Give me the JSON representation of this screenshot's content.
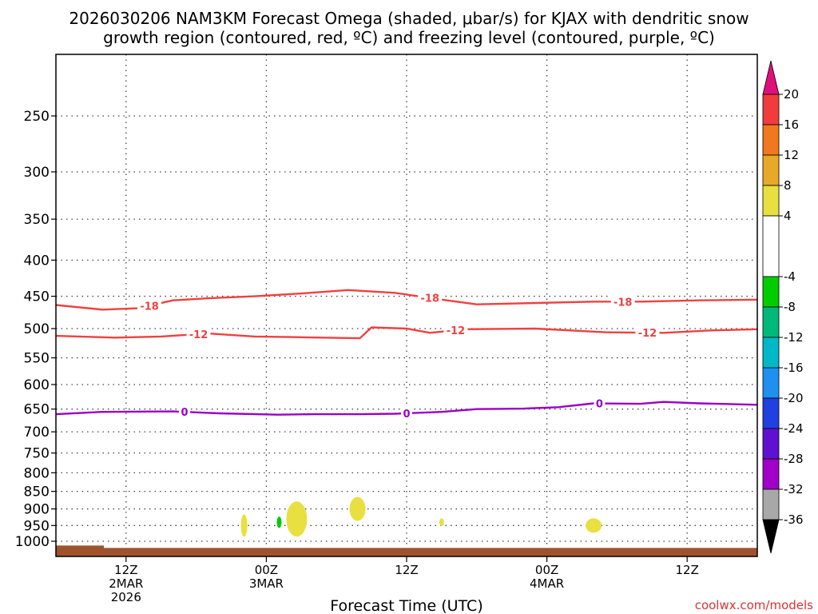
{
  "chart_data": {
    "type": "time-height cross section",
    "title_line1": "2026030206 NAM3KM Forecast Omega (shaded, μbar/s) for KJAX with dendritic snow",
    "title_line2": "growth region (contoured, red, ºC) and freezing level (contoured, purple, ºC)",
    "xlabel": "Forecast Time (UTC)",
    "credit": "coolwx.com/models",
    "x_unit": "hours since 2026-03-02 06Z",
    "xlim": [
      0,
      60
    ],
    "ylim_hpa": [
      1030,
      200
    ],
    "y_ticks": [
      250,
      300,
      350,
      400,
      450,
      500,
      550,
      600,
      650,
      700,
      750,
      800,
      850,
      900,
      950,
      1000
    ],
    "x_ticks": [
      {
        "t": 6,
        "line1": "12Z",
        "line2": "2MAR",
        "line3": "2026"
      },
      {
        "t": 18,
        "line1": "00Z",
        "line2": "3MAR",
        "line3": ""
      },
      {
        "t": 30,
        "line1": "12Z",
        "line2": "",
        "line3": ""
      },
      {
        "t": 42,
        "line1": "00Z",
        "line2": "4MAR",
        "line3": ""
      },
      {
        "t": 54,
        "line1": "12Z",
        "line2": "",
        "line3": ""
      }
    ],
    "contours": [
      {
        "name": "-18C isotherm",
        "label": "-18",
        "color": "#f04040",
        "points": [
          [
            0,
            463
          ],
          [
            4,
            470
          ],
          [
            7,
            468
          ],
          [
            10,
            456
          ],
          [
            13,
            453
          ],
          [
            17,
            450
          ],
          [
            21,
            446
          ],
          [
            25,
            441
          ],
          [
            29,
            445
          ],
          [
            33,
            455
          ],
          [
            36,
            462
          ],
          [
            41,
            460
          ],
          [
            46,
            458
          ],
          [
            50,
            458
          ],
          [
            55,
            456
          ],
          [
            60,
            455
          ]
        ],
        "label_at": [
          8,
          32,
          48.5
        ]
      },
      {
        "name": "-12C isotherm",
        "label": "-12",
        "color": "#f04040",
        "points": [
          [
            0,
            512
          ],
          [
            5,
            515
          ],
          [
            9,
            513
          ],
          [
            13,
            508
          ],
          [
            17,
            513
          ],
          [
            20,
            514
          ],
          [
            26,
            516
          ],
          [
            27,
            498
          ],
          [
            30,
            500
          ],
          [
            32,
            507
          ],
          [
            35,
            501
          ],
          [
            41,
            500
          ],
          [
            47,
            506
          ],
          [
            52,
            507
          ],
          [
            56,
            503
          ],
          [
            60,
            501
          ]
        ],
        "label_at": [
          12.2,
          34.2,
          50.6
        ]
      },
      {
        "name": "0C freezing level",
        "label": "0",
        "color": "#9a00c8",
        "points": [
          [
            0,
            661
          ],
          [
            4,
            656
          ],
          [
            10,
            655
          ],
          [
            14,
            659
          ],
          [
            19,
            662
          ],
          [
            22,
            661
          ],
          [
            26,
            661
          ],
          [
            29,
            660
          ],
          [
            33,
            656
          ],
          [
            36,
            650
          ],
          [
            40,
            649
          ],
          [
            43,
            646
          ],
          [
            46,
            638
          ],
          [
            50,
            639
          ],
          [
            52,
            635
          ],
          [
            55,
            638
          ],
          [
            60,
            641
          ]
        ],
        "label_at": [
          11,
          30,
          46.5
        ]
      }
    ],
    "omega_shading": [
      {
        "t": 16.1,
        "p": 950,
        "value": 6,
        "color": "#e8e040"
      },
      {
        "t": 19.1,
        "p": 940,
        "value": -6,
        "color": "#00cc00"
      },
      {
        "t": 20.6,
        "p": 930,
        "value": 6,
        "color": "#e8e040"
      },
      {
        "t": 25.8,
        "p": 900,
        "value": 6,
        "color": "#e8e040"
      },
      {
        "t": 33.0,
        "p": 940,
        "value": 6,
        "color": "#e8e040"
      },
      {
        "t": 46.0,
        "p": 950,
        "value": 6,
        "color": "#e8e040"
      }
    ],
    "terrain": {
      "color": "#a0522d",
      "surface_hpa": 1022
    },
    "colorbar": {
      "ticks": [
        "20",
        "16",
        "12",
        "8",
        "4",
        "-4",
        "-8",
        "-12",
        "-16",
        "-20",
        "-24",
        "-28",
        "-32",
        "-36"
      ],
      "segments": [
        {
          "from": 16,
          "to": 20,
          "color": "#f03c3c"
        },
        {
          "from": 12,
          "to": 16,
          "color": "#f07820"
        },
        {
          "from": 8,
          "to": 12,
          "color": "#e8a828"
        },
        {
          "from": 4,
          "to": 8,
          "color": "#e8e040"
        },
        {
          "from": -4,
          "to": 4,
          "color": "#ffffff"
        },
        {
          "from": -8,
          "to": -4,
          "color": "#00cc00"
        },
        {
          "from": -12,
          "to": -8,
          "color": "#00b87a"
        },
        {
          "from": -16,
          "to": -12,
          "color": "#00b8c8"
        },
        {
          "from": -20,
          "to": -16,
          "color": "#1e90f0"
        },
        {
          "from": -24,
          "to": -20,
          "color": "#2040e0"
        },
        {
          "from": -28,
          "to": -24,
          "color": "#6010d0"
        },
        {
          "from": -32,
          "to": -28,
          "color": "#a000c8"
        },
        {
          "from": -36,
          "to": -32,
          "color": "#a8a8a8"
        }
      ],
      "top_arrow_color": "#e0107a",
      "bottom_arrow_color": "#000000"
    }
  }
}
